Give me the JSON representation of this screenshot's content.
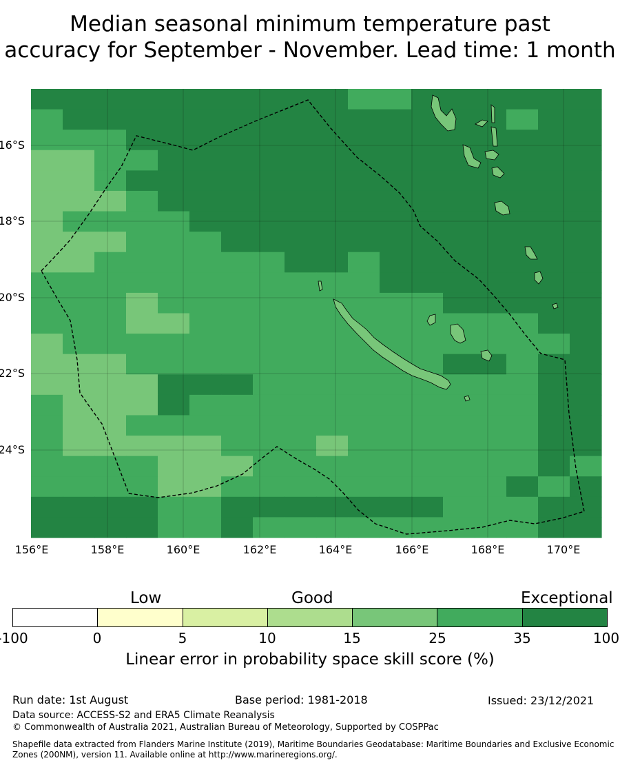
{
  "title": {
    "line1": "Median seasonal minimum temperature past",
    "line2": "accuracy for September - November. Lead time: 1 month"
  },
  "map": {
    "lat_labels": [
      "16°S",
      "18°S",
      "20°S",
      "22°S",
      "24°S"
    ],
    "lon_labels": [
      "156°E",
      "158°E",
      "160°E",
      "162°E",
      "164°E",
      "166°E",
      "168°E",
      "170°E"
    ],
    "colors": {
      "lt0": "#ffffff",
      "0-5": "#ffffcc",
      "5-10": "#d9f0a3",
      "10-15": "#addd8e",
      "15-25": "#78c679",
      "25-35": "#41ab5d",
      "35-100": "#238443"
    }
  },
  "colorbar": {
    "categories": [
      "Low",
      "Good",
      "Exceptional"
    ],
    "ticks": [
      "-100",
      "0",
      "5",
      "10",
      "15",
      "25",
      "35",
      "100"
    ],
    "label": "Linear error in probability space skill score (%)",
    "segment_colors": [
      "#ffffff",
      "#ffffcc",
      "#d9f0a3",
      "#addd8e",
      "#78c679",
      "#41ab5d",
      "#238443"
    ]
  },
  "footer": {
    "run_date": "Run date: 1st August",
    "base_period": "Base period: 1981-2018",
    "issued": "Issued: 23/12/2021",
    "data_source": "Data source: ACCESS-S2 and ERA5 Climate Reanalysis",
    "copyright": "© Commonwealth of Australia 2021, Australian Bureau of Meteorology, Supported by COSPPac",
    "shapefile": "Shapefile data extracted from Flanders Marine Institute (2019), Maritime Boundaries Geodatabase: Maritime Boundaries and Exclusive Economic Zones (200NM), version 11. Available online at http://www.marineregions.org/."
  }
}
